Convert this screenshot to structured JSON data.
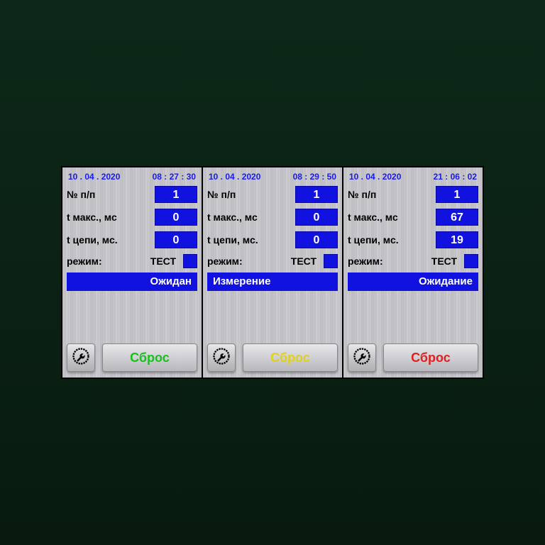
{
  "colors": {
    "header_text": "#1a1ae6",
    "value_bg": "#1212e0",
    "value_text": "#ffffff",
    "label_text": "#000000"
  },
  "labels": {
    "np": "№ п/п",
    "tmax": "t макс., мс",
    "tcircuit": "t цепи, мс.",
    "mode": "режим:",
    "mode_value": "ТЕСТ",
    "reset": "Сброс"
  },
  "panels": [
    {
      "date": "10 . 04 . 2020",
      "time": "08 : 27 : 30",
      "np": "1",
      "tmax": "0",
      "tcircuit": "0",
      "status": "Ожидан",
      "status_align": "right",
      "reset_color": "#18c020"
    },
    {
      "date": "10 . 04 . 2020",
      "time": "08 : 29 : 50",
      "np": "1",
      "tmax": "0",
      "tcircuit": "0",
      "status": "Измерение",
      "status_align": "left",
      "reset_color": "#e0d020"
    },
    {
      "date": "10 . 04 . 2020",
      "time": "21 : 06 : 02",
      "np": "1",
      "tmax": "67",
      "tcircuit": "19",
      "status": "Ожидание",
      "status_align": "right",
      "reset_color": "#e02020"
    }
  ]
}
